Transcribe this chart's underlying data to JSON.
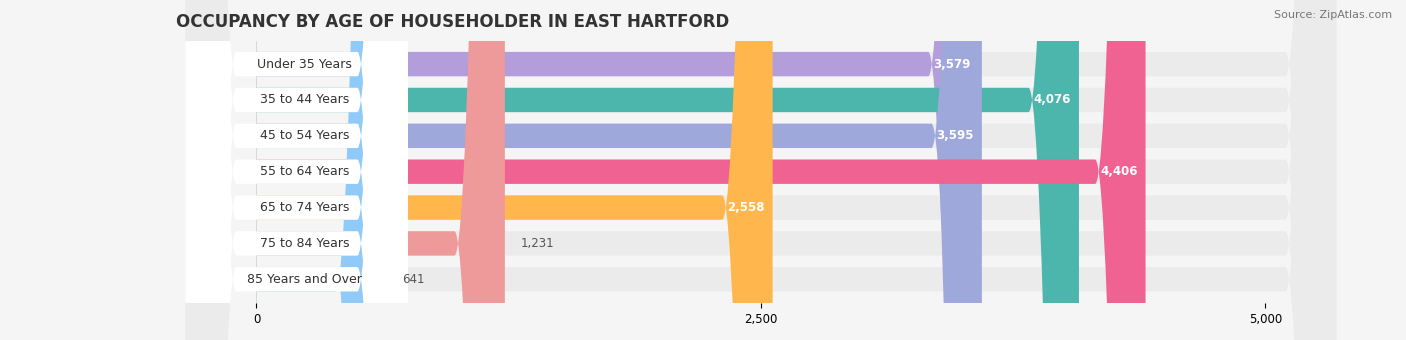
{
  "title": "OCCUPANCY BY AGE OF HOUSEHOLDER IN EAST HARTFORD",
  "source": "Source: ZipAtlas.com",
  "categories": [
    "Under 35 Years",
    "35 to 44 Years",
    "45 to 54 Years",
    "55 to 64 Years",
    "65 to 74 Years",
    "75 to 84 Years",
    "85 Years and Over"
  ],
  "values": [
    3579,
    4076,
    3595,
    4406,
    2558,
    1231,
    641
  ],
  "bar_colors": [
    "#b39ddb",
    "#4db6ac",
    "#9fa8da",
    "#f06292",
    "#ffb74d",
    "#ef9a9a",
    "#90caf9"
  ],
  "xlim": [
    0,
    5000
  ],
  "xticks": [
    0,
    2500,
    5000
  ],
  "background_color": "#f5f5f5",
  "bar_bg_color": "#e0e0e0",
  "label_bg_color": "#ffffff",
  "title_fontsize": 12,
  "label_fontsize": 9,
  "value_fontsize": 8.5,
  "source_fontsize": 8
}
